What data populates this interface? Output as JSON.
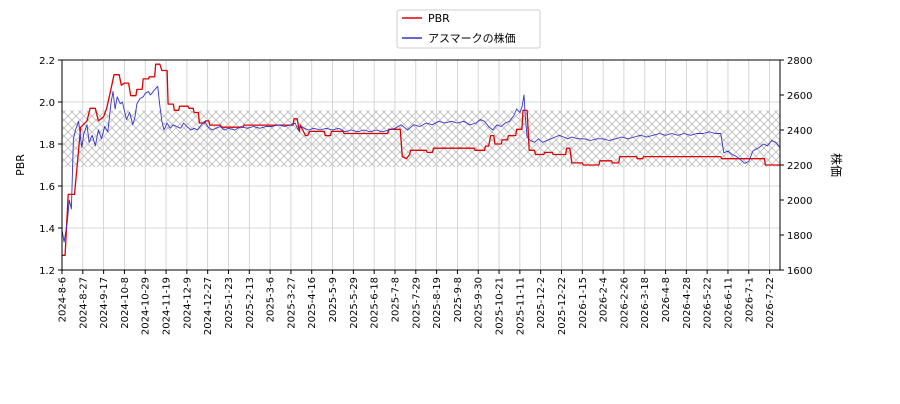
{
  "chart_data": {
    "type": "line",
    "title": "",
    "legend": {
      "placement": "top-center",
      "entries": [
        {
          "label": "PBR",
          "color": "#dd0000"
        },
        {
          "label": "アスマークの株価",
          "color": "#3333cc"
        }
      ]
    },
    "grid": true,
    "band": {
      "ymin": 1.69,
      "ymax": 1.96,
      "axis": "left",
      "pattern": "cross-hatch"
    },
    "y_left": {
      "label": "PBR",
      "range": [
        1.2,
        2.2
      ],
      "ticks": [
        "1.2",
        "1.4",
        "1.6",
        "1.8",
        "2.0",
        "2.2"
      ]
    },
    "y_right": {
      "label": "株価",
      "range": [
        1600,
        2800
      ],
      "ticks": [
        "1600",
        "1800",
        "2000",
        "2200",
        "2400",
        "2600",
        "2800"
      ]
    },
    "x_ticks": [
      "2024-8-6",
      "2024-8-27",
      "2024-9-17",
      "2024-10-8",
      "2024-10-29",
      "2024-11-19",
      "2024-12-9",
      "2024-12-27",
      "2025-1-23",
      "2025-2-13",
      "2025-3-6",
      "2025-3-27",
      "2025-4-16",
      "2025-5-9",
      "2025-5-29",
      "2025-6-18",
      "2025-7-8",
      "2025-7-29",
      "2025-8-19",
      "2025-9-8",
      "2025-9-30",
      "2025-10-21",
      "2025-11-11",
      "2025-12-2",
      "2025-12-22",
      "2026-1-15",
      "2026-2-4",
      "2026-2-26",
      "2026-3-18",
      "2026-4-8",
      "2026-4-28",
      "2026-5-22",
      "2026-6-11",
      "2026-7-1",
      "2026-7-22"
    ],
    "series": [
      {
        "name": "PBR",
        "axis": "left",
        "color": "#dd0000",
        "points": [
          [
            0,
            1.27
          ],
          [
            0.15,
            1.27
          ],
          [
            0.3,
            1.56
          ],
          [
            0.6,
            1.56
          ],
          [
            0.9,
            1.88
          ],
          [
            1.2,
            1.91
          ],
          [
            1.35,
            1.97
          ],
          [
            1.6,
            1.97
          ],
          [
            1.75,
            1.91
          ],
          [
            2.0,
            1.93
          ],
          [
            2.15,
            1.97
          ],
          [
            2.35,
            2.06
          ],
          [
            2.5,
            2.13
          ],
          [
            2.75,
            2.13
          ],
          [
            2.85,
            2.08
          ],
          [
            3.0,
            2.09
          ],
          [
            3.2,
            2.09
          ],
          [
            3.3,
            2.03
          ],
          [
            3.55,
            2.03
          ],
          [
            3.6,
            2.06
          ],
          [
            3.85,
            2.06
          ],
          [
            3.9,
            2.11
          ],
          [
            4.15,
            2.11
          ],
          [
            4.2,
            2.12
          ],
          [
            4.45,
            2.12
          ],
          [
            4.5,
            2.18
          ],
          [
            4.7,
            2.18
          ],
          [
            4.8,
            2.15
          ],
          [
            5.05,
            2.15
          ],
          [
            5.1,
            1.99
          ],
          [
            5.35,
            1.99
          ],
          [
            5.4,
            1.96
          ],
          [
            5.6,
            1.96
          ],
          [
            5.65,
            1.98
          ],
          [
            6.05,
            1.98
          ],
          [
            6.1,
            1.97
          ],
          [
            6.3,
            1.97
          ],
          [
            6.35,
            1.95
          ],
          [
            6.55,
            1.95
          ],
          [
            6.6,
            1.9
          ],
          [
            6.85,
            1.9
          ],
          [
            6.9,
            1.91
          ],
          [
            7.05,
            1.91
          ],
          [
            7.1,
            1.89
          ],
          [
            7.6,
            1.89
          ],
          [
            7.65,
            1.88
          ],
          [
            8.7,
            1.88
          ],
          [
            8.75,
            1.89
          ],
          [
            11.1,
            1.89
          ],
          [
            11.15,
            1.92
          ],
          [
            11.3,
            1.92
          ],
          [
            11.4,
            1.86
          ],
          [
            11.45,
            1.89
          ],
          [
            11.6,
            1.86
          ],
          [
            11.7,
            1.84
          ],
          [
            11.8,
            1.84
          ],
          [
            11.9,
            1.86
          ],
          [
            12.6,
            1.86
          ],
          [
            12.65,
            1.84
          ],
          [
            12.9,
            1.84
          ],
          [
            12.95,
            1.86
          ],
          [
            13.5,
            1.86
          ],
          [
            13.55,
            1.85
          ],
          [
            15.65,
            1.85
          ],
          [
            15.7,
            1.87
          ],
          [
            16.25,
            1.87
          ],
          [
            16.35,
            1.74
          ],
          [
            16.55,
            1.73
          ],
          [
            16.7,
            1.75
          ],
          [
            16.75,
            1.77
          ],
          [
            17.5,
            1.77
          ],
          [
            17.55,
            1.76
          ],
          [
            17.8,
            1.76
          ],
          [
            17.85,
            1.78
          ],
          [
            19.8,
            1.78
          ],
          [
            19.85,
            1.77
          ],
          [
            20.3,
            1.77
          ],
          [
            20.35,
            1.79
          ],
          [
            20.5,
            1.79
          ],
          [
            20.6,
            1.84
          ],
          [
            20.75,
            1.84
          ],
          [
            20.8,
            1.8
          ],
          [
            21.1,
            1.8
          ],
          [
            21.15,
            1.82
          ],
          [
            21.4,
            1.82
          ],
          [
            21.45,
            1.84
          ],
          [
            21.8,
            1.84
          ],
          [
            21.85,
            1.87
          ],
          [
            22.1,
            1.87
          ],
          [
            22.15,
            1.96
          ],
          [
            22.35,
            1.96
          ],
          [
            22.45,
            1.77
          ],
          [
            22.7,
            1.77
          ],
          [
            22.75,
            1.75
          ],
          [
            23.15,
            1.75
          ],
          [
            23.2,
            1.76
          ],
          [
            23.55,
            1.76
          ],
          [
            23.6,
            1.75
          ],
          [
            24.2,
            1.75
          ],
          [
            24.25,
            1.78
          ],
          [
            24.4,
            1.78
          ],
          [
            24.5,
            1.71
          ],
          [
            25.0,
            1.71
          ],
          [
            25.05,
            1.7
          ],
          [
            25.8,
            1.7
          ],
          [
            25.85,
            1.72
          ],
          [
            26.4,
            1.72
          ],
          [
            26.45,
            1.71
          ],
          [
            26.75,
            1.71
          ],
          [
            26.8,
            1.74
          ],
          [
            27.6,
            1.74
          ],
          [
            27.65,
            1.73
          ],
          [
            27.9,
            1.73
          ],
          [
            27.95,
            1.74
          ],
          [
            31.65,
            1.74
          ],
          [
            31.7,
            1.73
          ],
          [
            33.75,
            1.73
          ],
          [
            33.8,
            1.7
          ],
          [
            34.9,
            1.7
          ]
        ]
      },
      {
        "name": "アスマークの株価",
        "axis": "right",
        "color": "#3333cc",
        "points": [
          [
            0,
            1830
          ],
          [
            0.1,
            1760
          ],
          [
            0.25,
            1870
          ],
          [
            0.35,
            2000
          ],
          [
            0.45,
            1950
          ],
          [
            0.55,
            2350
          ],
          [
            0.65,
            2400
          ],
          [
            0.8,
            2450
          ],
          [
            0.95,
            2300
          ],
          [
            1.05,
            2380
          ],
          [
            1.2,
            2430
          ],
          [
            1.3,
            2330
          ],
          [
            1.45,
            2370
          ],
          [
            1.6,
            2310
          ],
          [
            1.75,
            2400
          ],
          [
            1.9,
            2350
          ],
          [
            2.05,
            2420
          ],
          [
            2.2,
            2390
          ],
          [
            2.35,
            2550
          ],
          [
            2.45,
            2620
          ],
          [
            2.55,
            2520
          ],
          [
            2.65,
            2590
          ],
          [
            2.8,
            2550
          ],
          [
            2.9,
            2560
          ],
          [
            3.0,
            2510
          ],
          [
            3.1,
            2460
          ],
          [
            3.25,
            2500
          ],
          [
            3.4,
            2430
          ],
          [
            3.5,
            2470
          ],
          [
            3.6,
            2550
          ],
          [
            3.75,
            2580
          ],
          [
            3.9,
            2590
          ],
          [
            4.0,
            2610
          ],
          [
            4.15,
            2620
          ],
          [
            4.25,
            2600
          ],
          [
            4.45,
            2630
          ],
          [
            4.6,
            2650
          ],
          [
            4.7,
            2540
          ],
          [
            4.8,
            2450
          ],
          [
            4.9,
            2400
          ],
          [
            5.05,
            2440
          ],
          [
            5.2,
            2410
          ],
          [
            5.35,
            2430
          ],
          [
            5.5,
            2420
          ],
          [
            5.7,
            2410
          ],
          [
            5.85,
            2440
          ],
          [
            6.0,
            2420
          ],
          [
            6.2,
            2400
          ],
          [
            6.35,
            2410
          ],
          [
            6.5,
            2400
          ],
          [
            6.7,
            2430
          ],
          [
            6.85,
            2450
          ],
          [
            7.0,
            2420
          ],
          [
            7.2,
            2400
          ],
          [
            7.4,
            2410
          ],
          [
            7.6,
            2420
          ],
          [
            7.8,
            2400
          ],
          [
            8.0,
            2410
          ],
          [
            8.3,
            2400
          ],
          [
            8.6,
            2420
          ],
          [
            8.9,
            2410
          ],
          [
            9.2,
            2420
          ],
          [
            9.5,
            2410
          ],
          [
            9.8,
            2420
          ],
          [
            10.1,
            2420
          ],
          [
            10.4,
            2430
          ],
          [
            10.7,
            2420
          ],
          [
            11.0,
            2430
          ],
          [
            11.2,
            2440
          ],
          [
            11.35,
            2400
          ],
          [
            11.5,
            2420
          ],
          [
            11.65,
            2410
          ],
          [
            11.85,
            2400
          ],
          [
            12.1,
            2410
          ],
          [
            12.4,
            2400
          ],
          [
            12.7,
            2410
          ],
          [
            13.0,
            2400
          ],
          [
            13.3,
            2410
          ],
          [
            13.6,
            2390
          ],
          [
            13.9,
            2400
          ],
          [
            14.2,
            2390
          ],
          [
            14.5,
            2400
          ],
          [
            14.8,
            2390
          ],
          [
            15.1,
            2400
          ],
          [
            15.4,
            2390
          ],
          [
            15.7,
            2400
          ],
          [
            16.0,
            2410
          ],
          [
            16.3,
            2430
          ],
          [
            16.6,
            2400
          ],
          [
            16.9,
            2430
          ],
          [
            17.2,
            2420
          ],
          [
            17.5,
            2440
          ],
          [
            17.8,
            2430
          ],
          [
            18.1,
            2450
          ],
          [
            18.4,
            2440
          ],
          [
            18.7,
            2450
          ],
          [
            19.0,
            2440
          ],
          [
            19.3,
            2450
          ],
          [
            19.6,
            2430
          ],
          [
            19.9,
            2440
          ],
          [
            20.1,
            2460
          ],
          [
            20.3,
            2450
          ],
          [
            20.5,
            2420
          ],
          [
            20.7,
            2400
          ],
          [
            20.9,
            2430
          ],
          [
            21.1,
            2420
          ],
          [
            21.3,
            2440
          ],
          [
            21.5,
            2450
          ],
          [
            21.7,
            2480
          ],
          [
            21.85,
            2520
          ],
          [
            22.0,
            2500
          ],
          [
            22.1,
            2530
          ],
          [
            22.2,
            2600
          ],
          [
            22.25,
            2490
          ],
          [
            22.35,
            2360
          ],
          [
            22.5,
            2340
          ],
          [
            22.7,
            2330
          ],
          [
            22.9,
            2350
          ],
          [
            23.1,
            2330
          ],
          [
            23.3,
            2340
          ],
          [
            23.5,
            2350
          ],
          [
            23.7,
            2360
          ],
          [
            23.9,
            2370
          ],
          [
            24.1,
            2360
          ],
          [
            24.3,
            2350
          ],
          [
            24.5,
            2360
          ],
          [
            24.8,
            2350
          ],
          [
            25.1,
            2350
          ],
          [
            25.4,
            2340
          ],
          [
            25.7,
            2350
          ],
          [
            26.0,
            2350
          ],
          [
            26.3,
            2340
          ],
          [
            26.6,
            2350
          ],
          [
            26.9,
            2360
          ],
          [
            27.2,
            2350
          ],
          [
            27.5,
            2360
          ],
          [
            27.8,
            2370
          ],
          [
            28.1,
            2360
          ],
          [
            28.4,
            2370
          ],
          [
            28.7,
            2380
          ],
          [
            29.0,
            2370
          ],
          [
            29.3,
            2380
          ],
          [
            29.6,
            2370
          ],
          [
            29.9,
            2380
          ],
          [
            30.2,
            2370
          ],
          [
            30.5,
            2380
          ],
          [
            30.8,
            2380
          ],
          [
            31.1,
            2390
          ],
          [
            31.4,
            2380
          ],
          [
            31.65,
            2380
          ],
          [
            31.8,
            2270
          ],
          [
            32.0,
            2280
          ],
          [
            32.2,
            2260
          ],
          [
            32.4,
            2250
          ],
          [
            32.6,
            2230
          ],
          [
            32.8,
            2210
          ],
          [
            33.0,
            2220
          ],
          [
            33.2,
            2280
          ],
          [
            33.5,
            2300
          ],
          [
            33.7,
            2320
          ],
          [
            33.9,
            2310
          ],
          [
            34.1,
            2340
          ],
          [
            34.3,
            2330
          ],
          [
            34.5,
            2300
          ],
          [
            34.7,
            2330
          ],
          [
            34.9,
            2320
          ]
        ]
      }
    ]
  }
}
